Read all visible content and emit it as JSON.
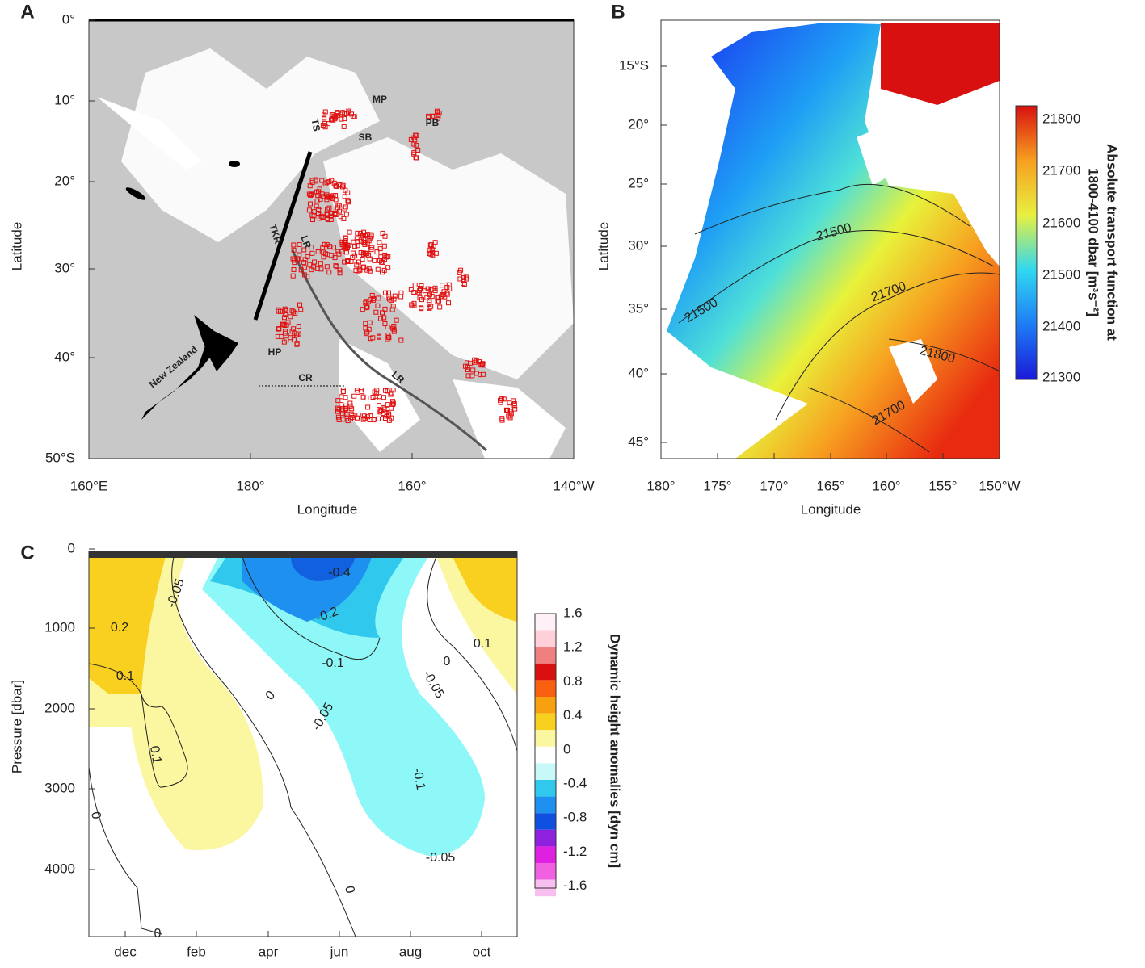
{
  "panels": [
    {
      "letter": "A",
      "xlabel": "Longitude",
      "ylabel": "Latitude",
      "xticks": [
        "160°E",
        "180°",
        "160°",
        "140°W"
      ],
      "yticks": [
        "0°",
        "10°",
        "20°",
        "30°",
        "40°",
        "50°S"
      ],
      "annotations": [
        "MP",
        "SB",
        "PB",
        "TS",
        "TKR",
        "LR",
        "HP",
        "CR",
        "LR",
        "New Zealand"
      ]
    },
    {
      "letter": "B",
      "xlabel": "Longitude",
      "ylabel": "Latitude",
      "xticks": [
        "180°",
        "175°",
        "170°",
        "165°",
        "160°",
        "155°",
        "150°W"
      ],
      "yticks": [
        "15°S",
        "20°",
        "25°",
        "30°",
        "35°",
        "40°",
        "45°"
      ],
      "contour_labels": [
        "21500",
        "21500",
        "21700",
        "21800",
        "21700"
      ],
      "colorbar": {
        "label": "Absolute transport function at",
        "label2": "1800-4100 dbar [m³s⁻²]",
        "ticks": [
          21800,
          21700,
          21600,
          21500,
          21400,
          21300
        ]
      }
    },
    {
      "letter": "C",
      "ylabel": "Pressure [dbar]",
      "xticks": [
        "dec",
        "feb",
        "apr",
        "jun",
        "aug",
        "oct"
      ],
      "yticks": [
        0,
        1000,
        2000,
        3000,
        4000
      ],
      "contour_labels": [
        "0.2",
        "0.1",
        "-0.05",
        "-0.1",
        "-0.2",
        "-0.4",
        "0.1",
        "0",
        "-0.05",
        "0.1",
        "-0.1",
        "0",
        "-0.05",
        "-0.05",
        "0",
        "0",
        "0"
      ],
      "colorbar": {
        "label": "Dynamic height anomalies [dyn cm]",
        "ticks": [
          1.6,
          1.2,
          0.8,
          0.4,
          0,
          -0.4,
          -0.8,
          -1.2,
          -1.6
        ]
      }
    }
  ]
}
